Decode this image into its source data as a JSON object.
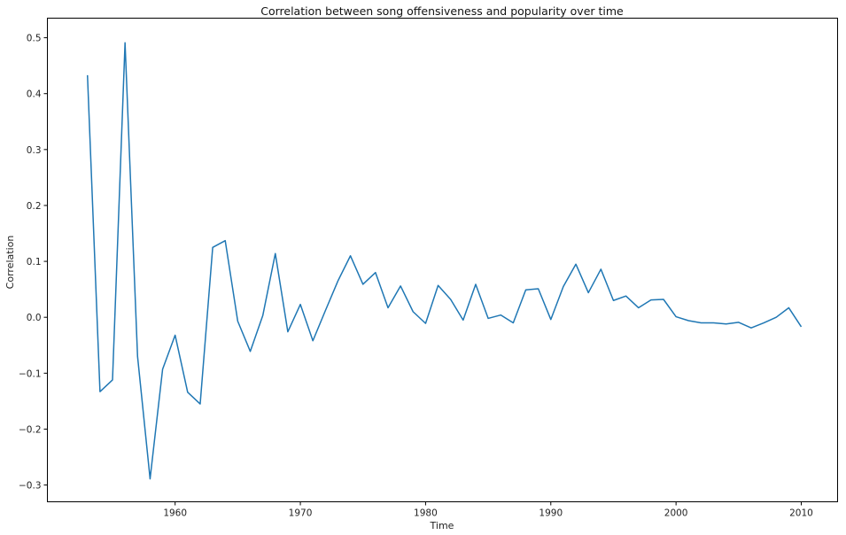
{
  "chart_data": {
    "type": "line",
    "title": "Correlation between song offensiveness and popularity over time",
    "xlabel": "Time",
    "ylabel": "Correlation",
    "xlim": [
      1949.8,
      2012.9
    ],
    "ylim": [
      -0.33,
      0.535
    ],
    "xticks": [
      1960,
      1970,
      1980,
      1990,
      2000,
      2010
    ],
    "yticks": [
      -0.3,
      -0.2,
      -0.1,
      0.0,
      0.1,
      0.2,
      0.3,
      0.4,
      0.5
    ],
    "grid": false,
    "series": [
      {
        "color": "#1f77b4",
        "points": [
          [
            1953,
            0.433
          ],
          [
            1954,
            -0.133
          ],
          [
            1955,
            -0.112
          ],
          [
            1956,
            0.491
          ],
          [
            1957,
            -0.07
          ],
          [
            1958,
            -0.289
          ],
          [
            1959,
            -0.093
          ],
          [
            1960,
            -0.032
          ],
          [
            1961,
            -0.134
          ],
          [
            1962,
            -0.155
          ],
          [
            1963,
            0.125
          ],
          [
            1964,
            0.137
          ],
          [
            1965,
            -0.007
          ],
          [
            1966,
            -0.061
          ],
          [
            1967,
            0.003
          ],
          [
            1968,
            0.114
          ],
          [
            1969,
            -0.026
          ],
          [
            1970,
            0.023
          ],
          [
            1971,
            -0.042
          ],
          [
            1972,
            0.012
          ],
          [
            1973,
            0.065
          ],
          [
            1974,
            0.11
          ],
          [
            1975,
            0.059
          ],
          [
            1976,
            0.08
          ],
          [
            1977,
            0.017
          ],
          [
            1978,
            0.056
          ],
          [
            1979,
            0.01
          ],
          [
            1980,
            -0.011
          ],
          [
            1981,
            0.057
          ],
          [
            1982,
            0.032
          ],
          [
            1983,
            -0.005
          ],
          [
            1984,
            0.059
          ],
          [
            1985,
            -0.002
          ],
          [
            1986,
            0.004
          ],
          [
            1987,
            -0.01
          ],
          [
            1988,
            0.049
          ],
          [
            1989,
            0.051
          ],
          [
            1990,
            -0.004
          ],
          [
            1991,
            0.055
          ],
          [
            1992,
            0.095
          ],
          [
            1993,
            0.044
          ],
          [
            1994,
            0.086
          ],
          [
            1995,
            0.03
          ],
          [
            1996,
            0.038
          ],
          [
            1997,
            0.017
          ],
          [
            1998,
            0.031
          ],
          [
            1999,
            0.032
          ],
          [
            2000,
            0.001
          ],
          [
            2001,
            -0.006
          ],
          [
            2002,
            -0.01
          ],
          [
            2003,
            -0.01
          ],
          [
            2004,
            -0.012
          ],
          [
            2005,
            -0.009
          ],
          [
            2006,
            -0.019
          ],
          [
            2007,
            -0.01
          ],
          [
            2008,
            0.0
          ],
          [
            2009,
            0.017
          ],
          [
            2010,
            -0.017
          ]
        ]
      }
    ]
  }
}
